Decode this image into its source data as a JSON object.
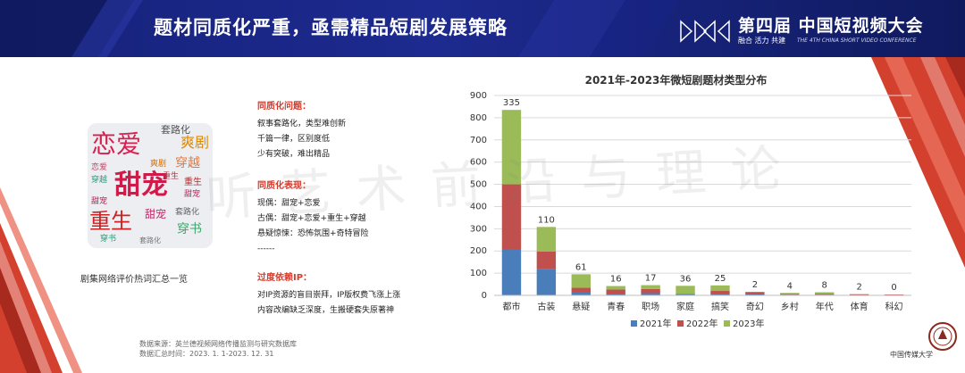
{
  "header": {
    "title": "题材同质化严重，亟需精品短剧发展策略",
    "conference_title": "第四届 中国短视频大会",
    "conference_slogan": "融合 活力 共建",
    "conference_english": "THE 4TH CHINA SHORT VIDEO CONFERENCE"
  },
  "word_cloud": {
    "caption": "剧集网络评价热词汇总一览",
    "words": [
      "甜宠",
      "恋爱",
      "重生",
      "爽剧",
      "穿越",
      "套路化",
      "穿书",
      "甜宠",
      "重生",
      "套路化",
      "穿书",
      "爽剧",
      "重生",
      "甜宠",
      "恋爱",
      "穿越",
      "套路化",
      "甜宠"
    ]
  },
  "sections": [
    {
      "heading": "同质化问题：",
      "lines": [
        "叙事套路化，类型难创新",
        "千篇一律，区别度低",
        "少有突破，难出精品"
      ]
    },
    {
      "heading": "同质化表现：",
      "lines": [
        "现偶：甜宠+恋爱",
        "古偶：甜宠+恋爱+重生+穿越",
        "悬疑惊悚：恐怖氛围+奇特冒险",
        "------"
      ]
    },
    {
      "heading": "过度依赖IP：",
      "lines": [
        "对IP资源的盲目崇拜，IP版权费飞涨上涨",
        "内容改编缺乏深度，生搬硬套失原著神"
      ]
    }
  ],
  "source": {
    "line1": "数据来源：英兰德视频网络传播监测与研究数据库",
    "line2": "数据汇总时间：2023. 1. 1-2023. 12. 31"
  },
  "watermark": "听艺术前沿与理论",
  "logo_text": "中国传媒大学",
  "chart_data": {
    "type": "bar",
    "stacked": true,
    "title": "2021年-2023年微短剧题材类型分布",
    "categories": [
      "都市",
      "古装",
      "悬疑",
      "青春",
      "职场",
      "家庭",
      "搞笑",
      "奇幻",
      "乡村",
      "年代",
      "体育",
      "科幻"
    ],
    "series": [
      {
        "name": "2021年",
        "color": "#4a7ebb",
        "values": [
          205,
          118,
          14,
          8,
          10,
          4,
          8,
          6,
          3,
          3,
          2,
          2
        ]
      },
      {
        "name": "2022年",
        "color": "#c0504d",
        "values": [
          295,
          80,
          20,
          18,
          19,
          3,
          12,
          8,
          4,
          3,
          2,
          2
        ]
      },
      {
        "name": "2023年",
        "color": "#9bbb59",
        "values": [
          335,
          110,
          61,
          16,
          17,
          36,
          25,
          2,
          4,
          8,
          2,
          0
        ]
      }
    ],
    "data_labels": [
      "335",
      "110",
      "61",
      "16",
      "17",
      "36",
      "25",
      "2",
      "4",
      "8",
      "2",
      "0"
    ],
    "ylim": [
      0,
      900
    ],
    "yticks": [
      0,
      100,
      200,
      300,
      400,
      500,
      600,
      700,
      800,
      900
    ],
    "legend_position": "bottom",
    "grid": true
  }
}
